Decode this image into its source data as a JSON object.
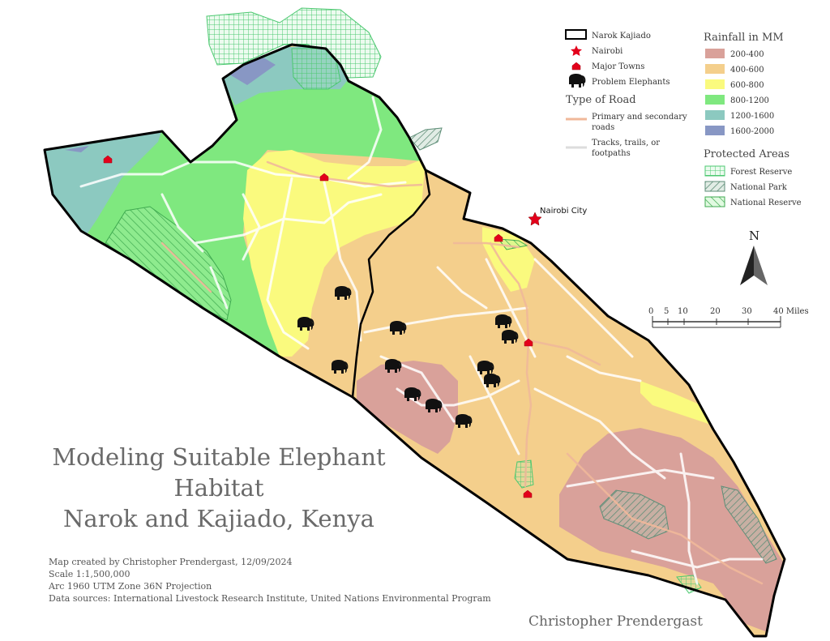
{
  "title_lines": [
    "Modeling Suitable Elephant",
    "Habitat",
    "Narok and Kajiado, Kenya"
  ],
  "credits": [
    "Map created by Christopher Prendergast, 12/09/2024",
    "Scale 1:1,500,000",
    "Arc 1960 UTM Zone 36N Projection",
    "Data sources: International Livestock Research Institute, United Nations Environmental Program"
  ],
  "author": "Christopher Prendergast",
  "city_label": "Nairobi City",
  "north_label": "N",
  "scale_bar": {
    "ticks": [
      "0",
      "5",
      "10",
      "20",
      "30",
      "40 Miles"
    ]
  },
  "legend": {
    "boundary": "Narok Kajiado",
    "nairobi": "Nairobi",
    "towns": "Major Towns",
    "elephants": "Problem Elephants",
    "roads_title": "Type of Road",
    "road_primary": "Primary and secondary roads",
    "road_primary_lines": [
      "Primary and secondary",
      "roads"
    ],
    "road_tracks": "Tracks, trails, or footpaths",
    "road_tracks_lines": [
      "Tracks, trails, or",
      "footpaths"
    ],
    "rain_title": "Rainfall in MM",
    "rain_classes": [
      {
        "label": "200-400",
        "color": "#d9a19a"
      },
      {
        "label": "400-600",
        "color": "#f4cf8c"
      },
      {
        "label": "600-800",
        "color": "#fafa7e"
      },
      {
        "label": "800-1200",
        "color": "#7fe87f"
      },
      {
        "label": "1200-1600",
        "color": "#8cc9c0"
      },
      {
        "label": "1600-2000",
        "color": "#8897c4"
      }
    ],
    "protected_title": "Protected Areas",
    "protected": [
      "Forest Reserve",
      "National Park",
      "National Reserve"
    ]
  },
  "colors": {
    "boundary": "#000000",
    "nairobi_star": "#e3001b",
    "town": "#e3001b",
    "primary_road": "#f0b89a",
    "track": "#e6e6d8",
    "forest_reserve": "#55d07a",
    "national_park": "#6a9a82"
  }
}
